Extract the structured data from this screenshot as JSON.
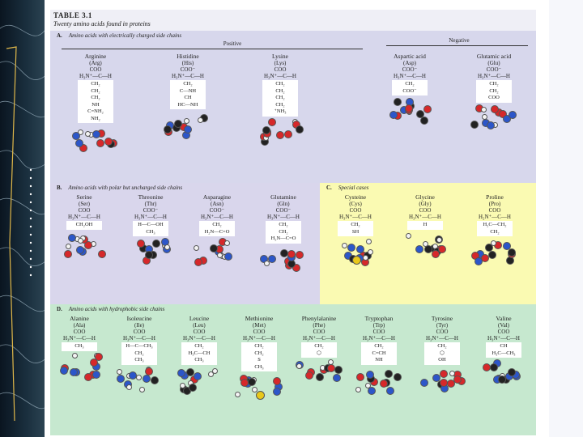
{
  "table": {
    "label": "TABLE 3.1",
    "caption": "Twenty amino acids found in proteins"
  },
  "panels": {
    "A": {
      "letter": "A.",
      "title": "Amino acids with electrically charged side chains",
      "positive_label": "Positive",
      "negative_label": "Negative",
      "amino_acids": [
        {
          "name": "Arginine",
          "abbr": "(Arg)",
          "top": "COO",
          "alpha": "H₃N⁺—C—H",
          "chain": [
            "CH₂",
            "CH₂",
            "CH₂",
            "NH",
            "C=NH₂",
            "NH₂"
          ]
        },
        {
          "name": "Histidine",
          "abbr": "(His)",
          "top": "COO⁻",
          "alpha": "H₃N⁺—C—H",
          "chain": [
            "CH₂",
            "C—NH",
            "CH",
            "HC—NH"
          ]
        },
        {
          "name": "Lysine",
          "abbr": "(Lys)",
          "top": "COO",
          "alpha": "H₃N⁺—C—H",
          "chain": [
            "CH₂",
            "CH₂",
            "CH₂",
            "CH₂",
            "⁺NH₃"
          ]
        },
        {
          "name": "Aspartic acid",
          "abbr": "(Asp)",
          "top": "COO⁻",
          "alpha": "H₃N⁺—C—H",
          "chain": [
            "CH₂",
            "COO⁻"
          ]
        },
        {
          "name": "Glutamic acid",
          "abbr": "(Glu)",
          "top": "COO⁻",
          "alpha": "H₃N⁺—C—H",
          "chain": [
            "CH₂",
            "CH₂",
            "COO"
          ]
        }
      ]
    },
    "B": {
      "letter": "B.",
      "title": "Amino acids with polar but uncharged side chains",
      "amino_acids": [
        {
          "name": "Serine",
          "abbr": "(Ser)",
          "top": "COO",
          "alpha": "H₃N⁺—C—H",
          "chain": [
            "CH₂OH"
          ]
        },
        {
          "name": "Threonine",
          "abbr": "(Thr)",
          "top": "COO⁻",
          "alpha": "H₃N⁺—C—H",
          "chain": [
            "H—C—OH",
            "CH₃"
          ]
        },
        {
          "name": "Asparagine",
          "abbr": "(Asn)",
          "top": "COO⁻",
          "alpha": "H₃N⁺—C—H",
          "chain": [
            "CH₂",
            "H₂N—C=O"
          ]
        },
        {
          "name": "Glutamine",
          "abbr": "(Gln)",
          "top": "COO⁻",
          "alpha": "H₃N⁺—C—H",
          "chain": [
            "CH₂",
            "CH₂",
            "H₂N—C=O"
          ]
        }
      ]
    },
    "C": {
      "letter": "C.",
      "title": "Special cases",
      "amino_acids": [
        {
          "name": "Cysteine",
          "abbr": "(Cys)",
          "top": "COO",
          "alpha": "H₃N⁺—C—H",
          "chain": [
            "CH₂",
            "SH"
          ]
        },
        {
          "name": "Glycine",
          "abbr": "(Gly)",
          "top": "COO",
          "alpha": "H₃N⁺—C—H",
          "chain": [
            "H"
          ]
        },
        {
          "name": "Proline",
          "abbr": "(Pro)",
          "top": "COO",
          "alpha": "H₂N⁺—C—H",
          "chain": [
            "H₂C—CH₂",
            "CH₂"
          ]
        }
      ]
    },
    "D": {
      "letter": "D.",
      "title": "Amino acids with hydrophobic side chains",
      "amino_acids": [
        {
          "name": "Alanine",
          "abbr": "(Ala)",
          "top": "COO",
          "alpha": "H₃N⁺—C—H",
          "chain": [
            "CH₃"
          ]
        },
        {
          "name": "Isoleucine",
          "abbr": "(Ile)",
          "top": "COO",
          "alpha": "H₃N⁺—C—H",
          "chain": [
            "H—C—CH₃",
            "CH₂",
            "CH₃"
          ]
        },
        {
          "name": "Leucine",
          "abbr": "(Leu)",
          "top": "COO",
          "alpha": "H₃N⁺—C—H",
          "chain": [
            "CH₂",
            "H₃C—CH",
            "CH₃"
          ]
        },
        {
          "name": "Methionine",
          "abbr": "(Met)",
          "top": "COO",
          "alpha": "H₃N⁺—C—H",
          "chain": [
            "CH₂",
            "CH₂",
            "S",
            "CH₃"
          ]
        },
        {
          "name": "Phenylalanine",
          "abbr": "(Phe)",
          "top": "COO",
          "alpha": "H₃N⁺—C—H",
          "chain": [
            "CH₂",
            "⬡"
          ]
        },
        {
          "name": "Tryptophan",
          "abbr": "(Trp)",
          "top": "COO",
          "alpha": "H₃N⁺—C—H",
          "chain": [
            "CH₂",
            "C=CH",
            "NH"
          ]
        },
        {
          "name": "Tyrosine",
          "abbr": "(Tyr)",
          "top": "COO",
          "alpha": "H₃N⁺—C—H",
          "chain": [
            "CH₂",
            "⬡",
            "OH"
          ]
        },
        {
          "name": "Valine",
          "abbr": "(Val)",
          "top": "COO",
          "alpha": "H₃N⁺—C—H",
          "chain": [
            "CH",
            "H₃C—CH₃"
          ]
        }
      ]
    }
  },
  "colors": {
    "panel_a": "#d7d7ec",
    "panel_b": "#d9d6ec",
    "panel_c": "#fafab2",
    "panel_d": "#c6e8cf",
    "atom_carbon": "#222222",
    "atom_oxygen": "#d6282a",
    "atom_nitrogen": "#2c56c9",
    "atom_hydrogen": "#f4f4f4",
    "atom_sulfur": "#e8c81a"
  }
}
